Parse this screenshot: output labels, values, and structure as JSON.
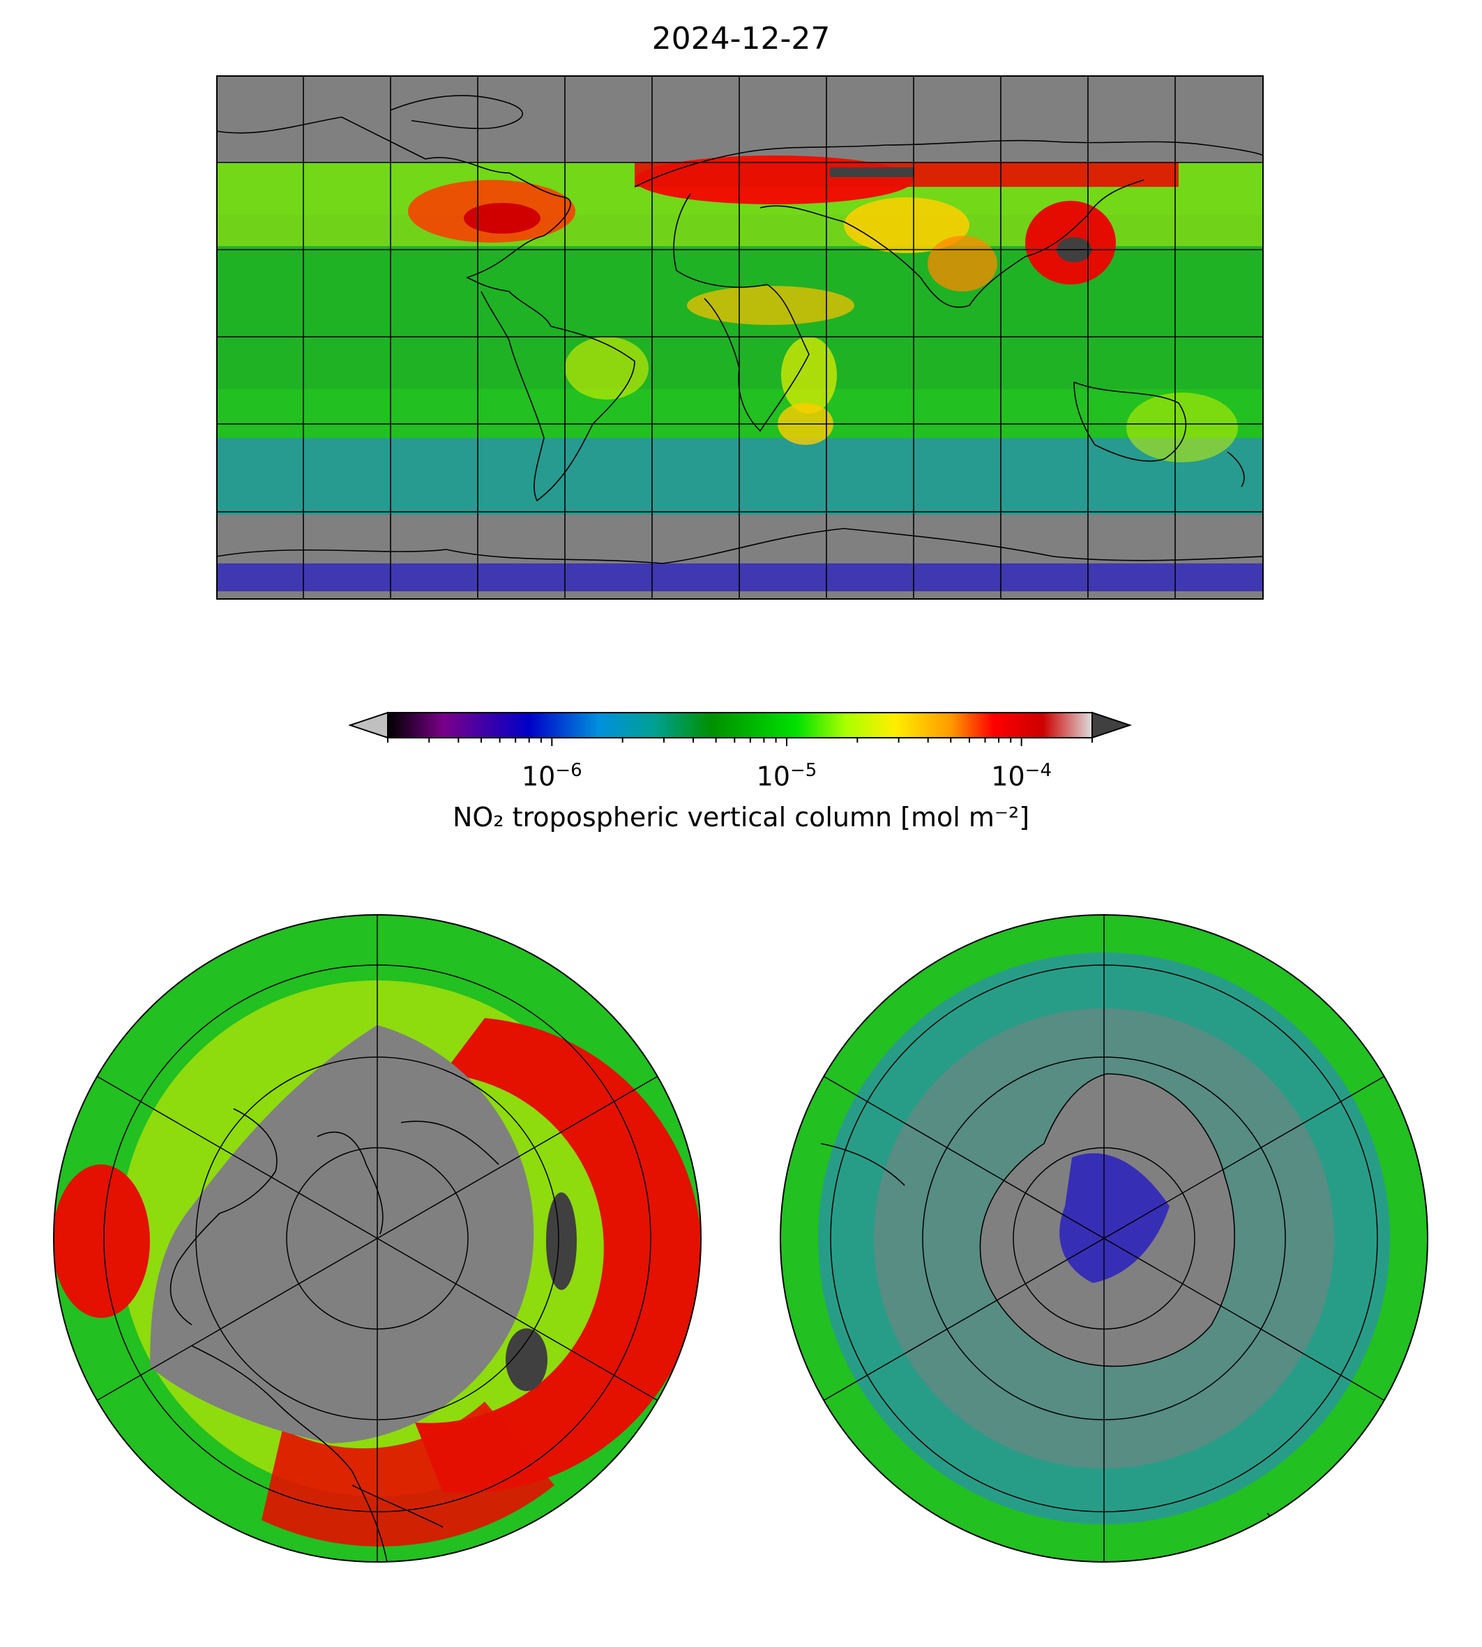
{
  "figure": {
    "title": "2024-12-27"
  },
  "colorbar": {
    "label": "NO₂ tropospheric vertical column [mol m⁻²]",
    "scale": "log",
    "range": [
      2e-07,
      0.0002
    ],
    "ticks": [
      {
        "base": "10",
        "exp": "−6",
        "value": 1e-06
      },
      {
        "base": "10",
        "exp": "−5",
        "value": 1e-05
      },
      {
        "base": "10",
        "exp": "−4",
        "value": 0.0001
      }
    ],
    "extend": "both",
    "colors": [
      "#000000",
      "#7a008a",
      "#0000c8",
      "#0090dd",
      "#00a090",
      "#009000",
      "#00e000",
      "#aaff00",
      "#ffee00",
      "#ff9900",
      "#ff0000",
      "#cc0000",
      "#dddddd"
    ],
    "under_color": "#c0c0c0",
    "over_color": "#404040",
    "nodata_color": "#808080"
  },
  "panels": {
    "world": "global equirectangular",
    "north": "north polar stereographic",
    "south": "south polar stereographic"
  }
}
